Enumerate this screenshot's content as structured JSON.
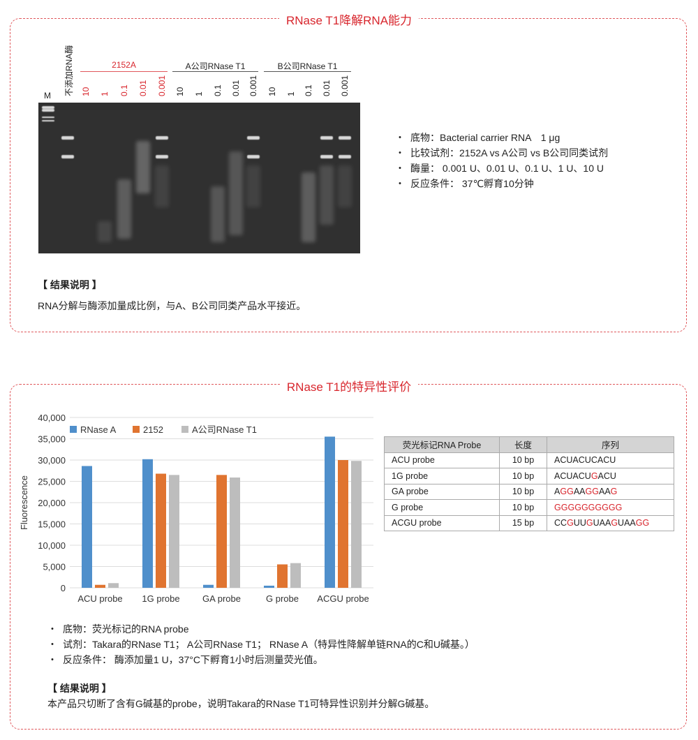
{
  "section1": {
    "title": "RNase T1降解RNA能力",
    "marker_label": "M",
    "no_enzyme_label": "不添加RNA酶",
    "groups": [
      {
        "name": "2152A",
        "color": "#d8262d",
        "lanes": [
          "10",
          "1",
          "0.1",
          "0.01",
          "0.001"
        ]
      },
      {
        "name": "A公司RNase T1",
        "color": "#222222",
        "lanes": [
          "10",
          "1",
          "0.1",
          "0.01",
          "0.001"
        ]
      },
      {
        "name": "B公司RNase T1",
        "color": "#222222",
        "lanes": [
          "10",
          "1",
          "0.1",
          "0.01",
          "0.001"
        ]
      }
    ],
    "bullets": [
      "底物：Bacterial carrier RNA　1 μg",
      "比较试剂：2152A vs A公司 vs B公司同类试剂",
      "酶量：  0.001 U、0.01 U、0.1 U、1 U、10 U",
      "反应条件：  37℃孵育10分钟"
    ],
    "result_heading": "【 结果说明 】",
    "result_text": "RNA分解与酶添加量成比例，与A、B公司同类产品水平接近。"
  },
  "section2": {
    "title": "RNase T1的特异性评价",
    "table": {
      "headers": [
        "荧光标记RNA Probe",
        "长度",
        "序列"
      ],
      "rows": [
        {
          "probe": "ACU probe",
          "length": "10 bp",
          "seq": "ACUACUCACU"
        },
        {
          "probe": "1G probe",
          "length": "10 bp",
          "seq": "ACUACUGACU"
        },
        {
          "probe": "GA probe",
          "length": "10 bp",
          "seq": "AGGAAGGAAG"
        },
        {
          "probe": "G probe",
          "length": "10 bp",
          "seq": "GGGGGGGGGG"
        },
        {
          "probe": "ACGU probe",
          "length": "15 bp",
          "seq": "CCGUUGUAAGUAAGG"
        }
      ],
      "highlight_color": "#d8262d"
    },
    "bullets": [
      "底物：荧光标记的RNA probe",
      "试剂：Takara的RNase T1；  A公司RNase T1；  RNase A（特异性降解单链RNA的C和U碱基。）",
      "反应条件：  酶添加量1 U，37°C下孵育1小时后测量荧光值。"
    ],
    "result_heading": "【 结果说明 】",
    "result_text": "本产品只切断了含有G碱基的probe，说明Takara的RNase T1可特异性识别并分解G碱基。"
  },
  "chart_data": {
    "type": "bar",
    "ylabel": "Fluorescence",
    "categories": [
      "ACU probe",
      "1G probe",
      "GA probe",
      "G probe",
      "ACGU probe"
    ],
    "ylim": [
      0,
      40000
    ],
    "yticks": [
      "0",
      "5,000",
      "10,000",
      "15,000",
      "20,000",
      "25,000",
      "30,000",
      "35,000",
      "40,000"
    ],
    "grid": true,
    "legend": "top-left",
    "series": [
      {
        "name": "RNase A",
        "color": "#4f8fcb",
        "values": [
          28600,
          30200,
          700,
          500,
          35500
        ]
      },
      {
        "name": "2152",
        "color": "#e07430",
        "values": [
          700,
          26800,
          26500,
          5500,
          30000
        ]
      },
      {
        "name": "A公司RNase T1",
        "color": "#bdbdbd",
        "values": [
          1100,
          26500,
          25900,
          5800,
          29800
        ]
      }
    ]
  }
}
